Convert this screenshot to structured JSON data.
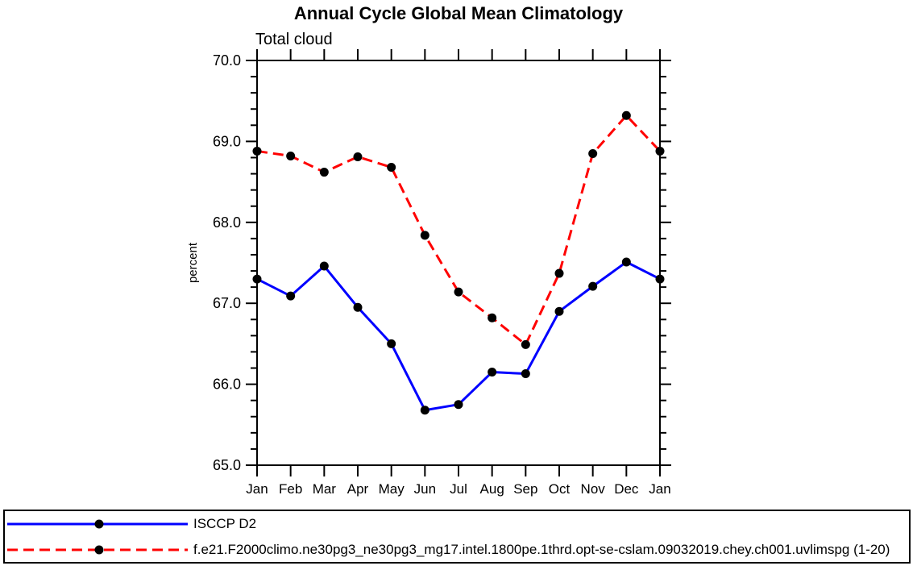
{
  "chart_data": {
    "type": "line",
    "title": "Annual Cycle Global Mean Climatology",
    "subtitle": "Total cloud",
    "ylabel": "percent",
    "x_categories": [
      "Jan",
      "Feb",
      "Mar",
      "Apr",
      "May",
      "Jun",
      "Jul",
      "Aug",
      "Sep",
      "Oct",
      "Nov",
      "Dec",
      "Jan"
    ],
    "ylim": [
      65.0,
      70.0
    ],
    "y_major_step": 1.0,
    "y_minor_step": 0.2,
    "y_tick_labels": [
      "65.0",
      "66.0",
      "67.0",
      "68.0",
      "69.0",
      "70.0"
    ],
    "grid": false,
    "legend_position": "bottom-box-full-width",
    "frame_color": "#000000",
    "series": [
      {
        "name": "ISCCP D2",
        "color": "#0000ff",
        "line_style": "solid",
        "line_width": 3,
        "marker": "filled-circle",
        "marker_color": "#000000",
        "values": [
          67.3,
          67.09,
          67.46,
          66.95,
          66.5,
          65.68,
          65.75,
          66.15,
          66.13,
          66.9,
          67.21,
          67.51,
          67.3
        ]
      },
      {
        "name": "f.e21.F2000climo.ne30pg3_ne30pg3_mg17.intel.1800pe.1thrd.opt-se-cslam.09032019.chey.ch001.uvlimspg (1-20)",
        "color": "#ff0000",
        "line_style": "dashed",
        "line_width": 3,
        "marker": "filled-circle",
        "marker_color": "#000000",
        "values": [
          68.88,
          68.82,
          68.62,
          68.81,
          68.68,
          67.84,
          67.14,
          66.82,
          66.49,
          67.37,
          68.85,
          69.32,
          68.88
        ]
      }
    ]
  }
}
